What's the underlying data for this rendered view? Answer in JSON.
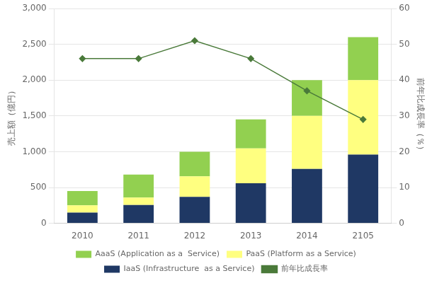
{
  "chart_data": {
    "type": "bar",
    "stacked": true,
    "categories": [
      "2010",
      "2011",
      "2012",
      "2013",
      "2014",
      "2105"
    ],
    "series": [
      {
        "name": "IaaS (Infrastructure  as a Service)",
        "color": "#1f3864",
        "values": [
          150,
          255,
          370,
          560,
          760,
          960
        ]
      },
      {
        "name": "PaaS (Platform as a Service)",
        "color": "#ffff80",
        "values": [
          100,
          105,
          285,
          485,
          740,
          1040
        ]
      },
      {
        "name": "AaaS (Application as a  Service)",
        "color": "#92d050",
        "values": [
          200,
          320,
          345,
          405,
          500,
          600
        ]
      },
      {
        "name": "前年比成長率",
        "type": "line",
        "marker": "diamond",
        "color": "#4a7a3a",
        "axis": "y2",
        "values": [
          46,
          46,
          51,
          46,
          37,
          29
        ]
      }
    ],
    "ylabel": "売上額（億円）",
    "y2label": "前年比成長率（％）",
    "ylim": [
      0,
      3000
    ],
    "yticks": [
      0,
      500,
      {
        "value": 1000,
        "label": "1,000"
      },
      {
        "value": 1500,
        "label": "1,500"
      },
      {
        "value": 2000,
        "label": "2,000"
      },
      {
        "value": 2500,
        "label": "2,500"
      },
      {
        "value": 3000,
        "label": "3,000"
      }
    ],
    "y2lim": [
      0,
      60
    ],
    "y2ticks": [
      0,
      10,
      20,
      30,
      40,
      50,
      60
    ],
    "grid": true,
    "legend": "bottom"
  }
}
